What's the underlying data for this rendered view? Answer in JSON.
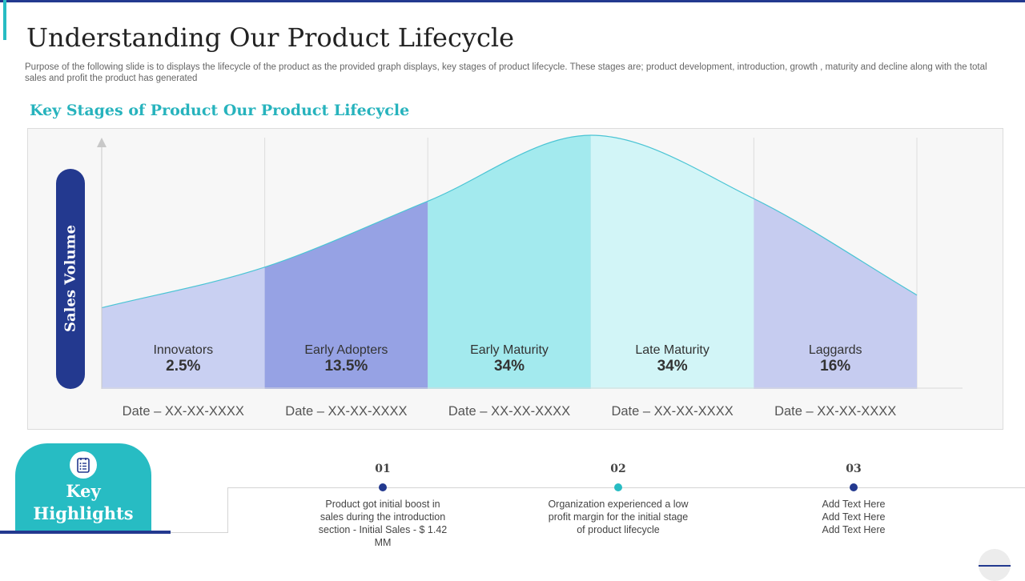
{
  "title": "Understanding Our Product Lifecycle",
  "subtitle": "Purpose of the following slide is to displays the lifecycle of the product as the provided graph displays, key stages of product lifecycle. These stages are; product development, introduction, growth , maturity and decline along with the total sales and profit the product has generated",
  "section_title": "Key Stages of Product Our Product Lifecycle",
  "colors": {
    "navy": "#23398f",
    "teal": "#27bcc3",
    "curve": "#4ac4d4"
  },
  "chart_data": {
    "type": "area",
    "ylabel": "Sales Volume",
    "segments": [
      {
        "name": "Innovators",
        "percent": "2.5%",
        "date": "Date – XX-XX-XXXX",
        "color": "#c9d0f2"
      },
      {
        "name": "Early Adopters",
        "percent": "13.5%",
        "date": "Date – XX-XX-XXXX",
        "color": "#96a2e4"
      },
      {
        "name": "Early Maturity",
        "percent": "34%",
        "date": "Date – XX-XX-XXXX",
        "color": "#a3eaee"
      },
      {
        "name": "Late Maturity",
        "percent": "34%",
        "date": "Date – XX-XX-XXXX",
        "color": "#d2f5f7"
      },
      {
        "name": "Laggards",
        "percent": "16%",
        "date": "Date – XX-XX-XXXX",
        "color": "#c6ccf0"
      }
    ],
    "curve": {
      "x": [
        0,
        1,
        2,
        3,
        4,
        5
      ],
      "y": [
        32,
        48,
        74,
        100,
        75,
        37
      ],
      "ylim": [
        0,
        100
      ],
      "xlim": [
        0,
        5
      ]
    }
  },
  "highlights": {
    "title": "Key Highlights",
    "icon": "checklist-icon",
    "items": [
      {
        "num": "01",
        "color": "#23398f",
        "text": "Product got initial boost in sales during the introduction section - Initial Sales - $ 1.42 MM"
      },
      {
        "num": "02",
        "color": "#27bcc3",
        "text": "Organization experienced a low profit margin for the initial stage of product lifecycle"
      },
      {
        "num": "03",
        "color": "#23398f",
        "text": "Add Text Here Add Text Here Add Text Here"
      }
    ]
  }
}
